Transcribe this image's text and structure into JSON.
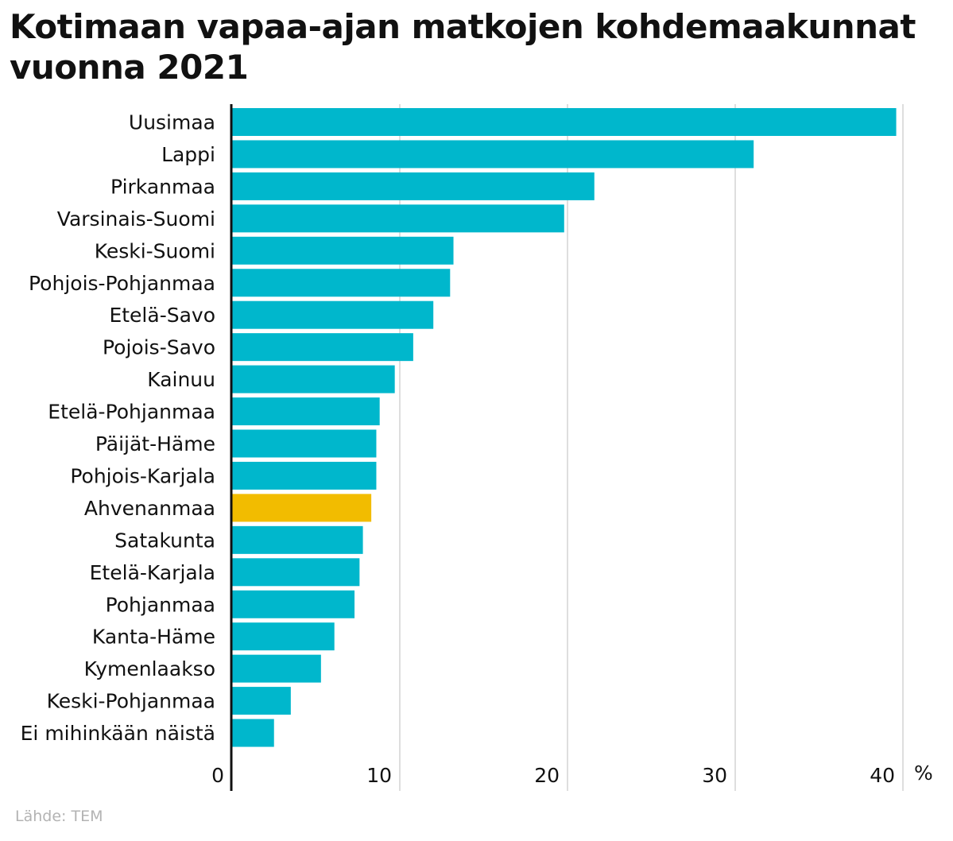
{
  "title": "Kotimaan vapaa-ajan matkojen kohdemaakunnat vuonna 2021",
  "source": "Lähde: TEM",
  "colors": {
    "bar": "#00b7cc",
    "highlight": "#f2bc00",
    "grid": "#d4d4d4",
    "axis": "#111111",
    "text": "#111111",
    "source": "#b3b3b3"
  },
  "chart_data": {
    "type": "bar",
    "orientation": "horizontal",
    "title": "Kotimaan vapaa-ajan matkojen kohdemaakunnat vuonna 2021",
    "unit": "%",
    "categories": [
      "Uusimaa",
      "Lappi",
      "Pirkanmaa",
      "Varsinais-Suomi",
      "Keski-Suomi",
      "Pohjois-Pohjanmaa",
      "Etelä-Savo",
      "Pojois-Savo",
      "Kainuu",
      "Etelä-Pohjanmaa",
      "Päijät-Häme",
      "Pohjois-Karjala",
      "Ahvenanmaa",
      "Satakunta",
      "Etelä-Karjala",
      "Pohjanmaa",
      "Kanta-Häme",
      "Kymenlaakso",
      "Keski-Pohjanmaa",
      "Ei mihinkään näistä"
    ],
    "values": [
      39.6,
      31.1,
      21.6,
      19.8,
      13.2,
      13.0,
      12.0,
      10.8,
      9.7,
      8.8,
      8.6,
      8.6,
      8.3,
      7.8,
      7.6,
      7.3,
      6.1,
      5.3,
      3.5,
      2.5
    ],
    "highlight": "Ahvenanmaa",
    "xlim": [
      0,
      40
    ],
    "xticks": [
      0,
      10,
      20,
      30,
      40
    ],
    "grid": true
  }
}
